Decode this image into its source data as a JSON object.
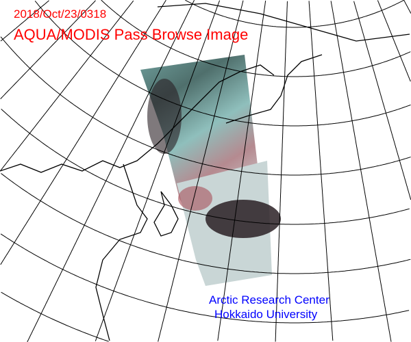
{
  "header": {
    "date_stamp": "2018/Oct/23/0318",
    "title": "AQUA/MODIS Pass Browse Image"
  },
  "credit": {
    "line1": "Arctic Research Center",
    "line2": "Hokkaido University"
  },
  "colors": {
    "header_text": "#ff0000",
    "credit_text": "#0000ff",
    "grid": "#000000",
    "swath_cyan": "#7fb3b0",
    "swath_red": "#b05a60",
    "swath_dark": "#2a2024"
  },
  "map": {
    "projection": "polar-stereographic",
    "features": [
      "graticule",
      "coastlines",
      "satellite-swath"
    ]
  }
}
